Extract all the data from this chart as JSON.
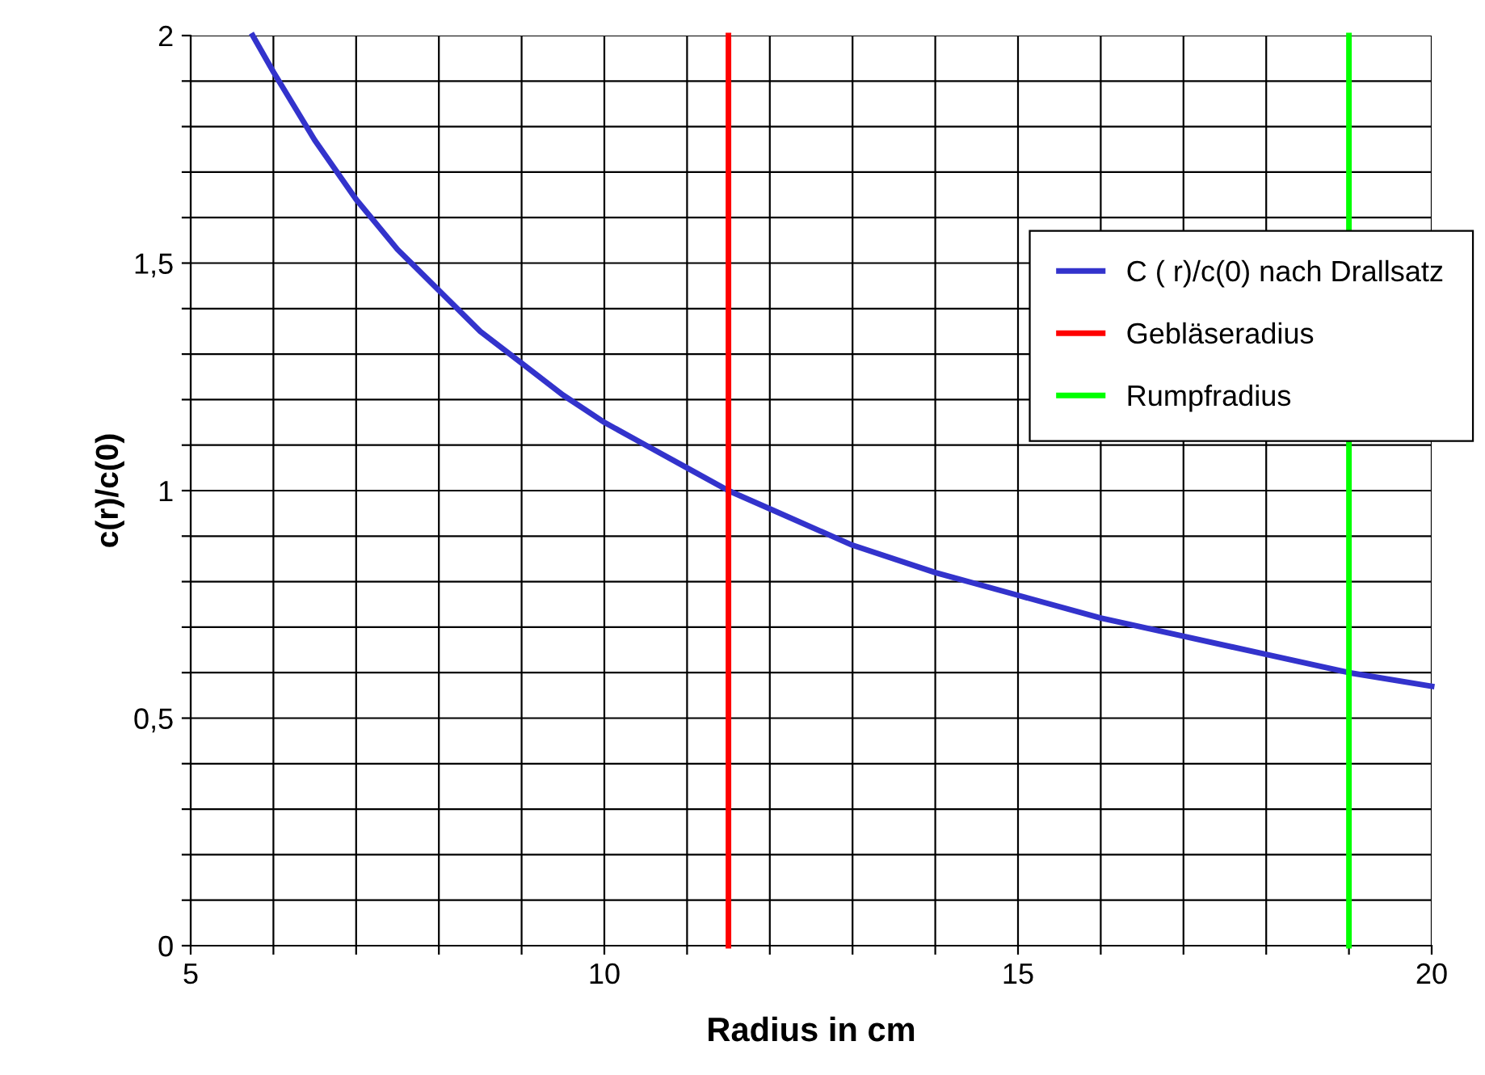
{
  "chart_data": {
    "type": "line",
    "xlabel": "Radius in cm",
    "ylabel": "c(r)/c(0)",
    "xlim": [
      5,
      20
    ],
    "ylim": [
      0,
      2
    ],
    "xticks": [
      5,
      {
        "value": 6,
        "label": null
      },
      {
        "value": 7,
        "label": null
      },
      {
        "value": 8,
        "label": null
      },
      {
        "value": 9,
        "label": null
      },
      10,
      {
        "value": 11,
        "label": null
      },
      {
        "value": 12,
        "label": null
      },
      {
        "value": 13,
        "label": null
      },
      {
        "value": 14,
        "label": null
      },
      15,
      {
        "value": 16,
        "label": null
      },
      {
        "value": 17,
        "label": null
      },
      {
        "value": 18,
        "label": null
      },
      {
        "value": 19,
        "label": null
      },
      20
    ],
    "yticks": [
      0,
      {
        "value": 0.1,
        "label": null
      },
      {
        "value": 0.2,
        "label": null
      },
      {
        "value": 0.3,
        "label": null
      },
      {
        "value": 0.4,
        "label": null
      },
      {
        "value": 0.5,
        "label": "0,5"
      },
      {
        "value": 0.6,
        "label": null
      },
      {
        "value": 0.7,
        "label": null
      },
      {
        "value": 0.8,
        "label": null
      },
      {
        "value": 0.9,
        "label": null
      },
      1,
      {
        "value": 1.1,
        "label": null
      },
      {
        "value": 1.2,
        "label": null
      },
      {
        "value": 1.3,
        "label": null
      },
      {
        "value": 1.4,
        "label": null
      },
      {
        "value": 1.5,
        "label": "1,5"
      },
      {
        "value": 1.6,
        "label": null
      },
      {
        "value": 1.7,
        "label": null
      },
      {
        "value": 1.8,
        "label": null
      },
      {
        "value": 1.9,
        "label": null
      },
      2
    ],
    "grid": true,
    "legend": "right",
    "marker": "none",
    "line_style": "solid",
    "series": [
      {
        "name": "C ( r)/c(0) nach Drallsatz",
        "color": "#3333cc",
        "x": [
          5.75,
          6,
          6.5,
          7,
          7.5,
          8,
          8.5,
          9,
          9.5,
          10,
          10.5,
          11,
          11.5,
          12,
          13,
          14,
          15,
          16,
          17,
          18,
          19,
          20
        ],
        "values": [
          2.0,
          1.92,
          1.77,
          1.64,
          1.53,
          1.44,
          1.35,
          1.28,
          1.21,
          1.15,
          1.1,
          1.05,
          1.0,
          0.96,
          0.88,
          0.82,
          0.77,
          0.72,
          0.68,
          0.64,
          0.6,
          0.57
        ]
      },
      {
        "name": "Gebläseradius",
        "color": "#ff0000",
        "x": [
          11.5,
          11.5
        ],
        "values": [
          0,
          2
        ]
      },
      {
        "name": "Rumpfradius",
        "color": "#00ff00",
        "x": [
          19,
          19
        ],
        "values": [
          0,
          2
        ]
      }
    ]
  }
}
